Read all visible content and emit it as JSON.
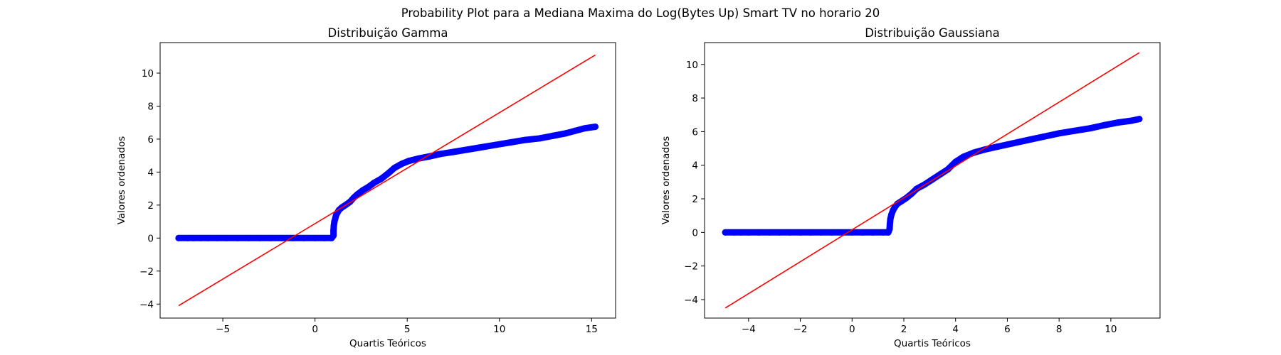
{
  "figure": {
    "title": "Probability Plot para a Mediana Maxima do Log(Bytes Up) Smart TV no horario 20"
  },
  "chart_data": [
    {
      "type": "scatter",
      "title": "Distribuição Gamma",
      "xlabel": "Quartis Teóricos",
      "ylabel": "Valores ordenados",
      "xlim": [
        -8.4,
        16.3
      ],
      "ylim": [
        -4.85,
        11.85
      ],
      "xticks": [
        -5,
        0,
        5,
        10,
        15
      ],
      "yticks": [
        -4,
        -2,
        0,
        2,
        4,
        6,
        8,
        10
      ],
      "grid": false,
      "colors": {
        "points": "#0000ff",
        "fit": "#ff0000"
      },
      "fit_line": {
        "x": [
          -7.4,
          15.2
        ],
        "y": [
          -4.1,
          11.1
        ]
      },
      "points": [
        [
          -7.4,
          0.0
        ],
        [
          -6.9,
          0.0
        ],
        [
          -6.6,
          0.0
        ],
        [
          -6.2,
          0.0
        ],
        [
          -5.8,
          0.0
        ],
        [
          -5.3,
          0.0
        ],
        [
          -4.8,
          0.0
        ],
        [
          -4.2,
          0.0
        ],
        [
          -3.6,
          0.0
        ],
        [
          -3.0,
          0.0
        ],
        [
          -2.4,
          0.0
        ],
        [
          -1.8,
          0.0
        ],
        [
          -1.2,
          0.0
        ],
        [
          -0.6,
          0.0
        ],
        [
          0.0,
          0.0
        ],
        [
          0.5,
          0.0
        ],
        [
          0.9,
          0.0
        ],
        [
          1.0,
          0.15
        ],
        [
          1.0,
          0.45
        ],
        [
          1.02,
          0.75
        ],
        [
          1.05,
          1.0
        ],
        [
          1.1,
          1.2
        ],
        [
          1.15,
          1.4
        ],
        [
          1.22,
          1.55
        ],
        [
          1.3,
          1.7
        ],
        [
          1.45,
          1.85
        ],
        [
          1.65,
          2.0
        ],
        [
          1.9,
          2.2
        ],
        [
          2.1,
          2.45
        ],
        [
          2.3,
          2.65
        ],
        [
          2.6,
          2.9
        ],
        [
          2.9,
          3.1
        ],
        [
          3.2,
          3.35
        ],
        [
          3.6,
          3.6
        ],
        [
          4.0,
          3.95
        ],
        [
          4.3,
          4.25
        ],
        [
          4.7,
          4.5
        ],
        [
          5.1,
          4.68
        ],
        [
          5.6,
          4.82
        ],
        [
          6.2,
          4.95
        ],
        [
          6.8,
          5.1
        ],
        [
          7.5,
          5.22
        ],
        [
          8.2,
          5.35
        ],
        [
          9.0,
          5.5
        ],
        [
          9.8,
          5.65
        ],
        [
          10.6,
          5.8
        ],
        [
          11.4,
          5.95
        ],
        [
          12.2,
          6.05
        ],
        [
          12.9,
          6.2
        ],
        [
          13.6,
          6.35
        ],
        [
          14.1,
          6.5
        ],
        [
          14.6,
          6.65
        ],
        [
          15.2,
          6.75
        ]
      ]
    },
    {
      "type": "scatter",
      "title": "Distribuição Gaussiana",
      "xlabel": "Quartis Teóricos",
      "ylabel": "Valores ordenados",
      "xlim": [
        -5.7,
        11.9
      ],
      "ylim": [
        -5.1,
        11.3
      ],
      "xticks": [
        -4,
        -2,
        0,
        2,
        4,
        6,
        8,
        10
      ],
      "yticks": [
        -4,
        -2,
        0,
        2,
        4,
        6,
        8,
        10
      ],
      "grid": false,
      "colors": {
        "points": "#0000ff",
        "fit": "#ff0000"
      },
      "fit_line": {
        "x": [
          -4.9,
          11.1
        ],
        "y": [
          -4.5,
          10.7
        ]
      },
      "points": [
        [
          -4.9,
          0.0
        ],
        [
          -4.55,
          0.0
        ],
        [
          -4.3,
          0.0
        ],
        [
          -4.0,
          0.0
        ],
        [
          -3.6,
          0.0
        ],
        [
          -3.2,
          0.0
        ],
        [
          -2.8,
          0.0
        ],
        [
          -2.4,
          0.0
        ],
        [
          -2.0,
          0.0
        ],
        [
          -1.6,
          0.0
        ],
        [
          -1.2,
          0.0
        ],
        [
          -0.8,
          0.0
        ],
        [
          -0.4,
          0.0
        ],
        [
          0.0,
          0.0
        ],
        [
          0.4,
          0.0
        ],
        [
          0.8,
          0.0
        ],
        [
          1.2,
          0.0
        ],
        [
          1.4,
          0.0
        ],
        [
          1.45,
          0.2
        ],
        [
          1.46,
          0.5
        ],
        [
          1.48,
          0.8
        ],
        [
          1.52,
          1.05
        ],
        [
          1.58,
          1.3
        ],
        [
          1.65,
          1.5
        ],
        [
          1.75,
          1.7
        ],
        [
          1.9,
          1.85
        ],
        [
          2.1,
          2.05
        ],
        [
          2.3,
          2.3
        ],
        [
          2.5,
          2.6
        ],
        [
          2.8,
          2.85
        ],
        [
          3.1,
          3.15
        ],
        [
          3.4,
          3.45
        ],
        [
          3.7,
          3.75
        ],
        [
          4.0,
          4.2
        ],
        [
          4.3,
          4.5
        ],
        [
          4.7,
          4.75
        ],
        [
          5.1,
          4.92
        ],
        [
          5.6,
          5.1
        ],
        [
          6.2,
          5.3
        ],
        [
          6.8,
          5.5
        ],
        [
          7.4,
          5.7
        ],
        [
          8.0,
          5.9
        ],
        [
          8.6,
          6.05
        ],
        [
          9.2,
          6.2
        ],
        [
          9.8,
          6.4
        ],
        [
          10.3,
          6.55
        ],
        [
          10.8,
          6.65
        ],
        [
          11.1,
          6.75
        ]
      ]
    }
  ]
}
